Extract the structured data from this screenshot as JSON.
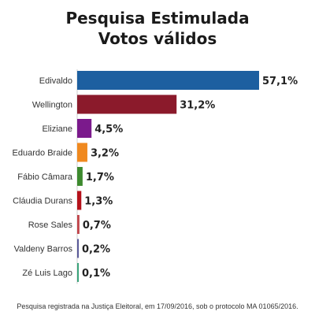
{
  "header": {
    "title": "Pesquisa Estimulada",
    "subtitle": "Votos válidos"
  },
  "footnote": "Pesquisa registrada na Justiça Eleitoral, em 17/09/2016, sob o protocolo MA 01065/2016.",
  "chart_data": {
    "type": "bar",
    "orientation": "horizontal",
    "title": "Pesquisa Estimulada",
    "subtitle": "Votos válidos",
    "categories": [
      "Edivaldo",
      "Wellington",
      "Eliziane",
      "Eduardo Braide",
      "Fábio Câmara",
      "Cláudia Durans",
      "Rose Sales",
      "Valdeny Barros",
      "Zé Luis Lago"
    ],
    "values": [
      57.1,
      31.2,
      4.5,
      3.2,
      1.7,
      1.3,
      0.7,
      0.2,
      0.1
    ],
    "value_labels": [
      "57,1%",
      "31,2%",
      "4,5%",
      "3,2%",
      "1,7%",
      "1,3%",
      "0,7%",
      "0,2%",
      "0,1%"
    ],
    "colors": [
      "#1d5fa0",
      "#8b1a2b",
      "#7b1a8c",
      "#f0891f",
      "#3d8a2e",
      "#b5121b",
      "#c0444a",
      "#5a5a99",
      "#3aa37a"
    ],
    "xlim": [
      0,
      57.1
    ],
    "grid": false,
    "legend": "none"
  }
}
